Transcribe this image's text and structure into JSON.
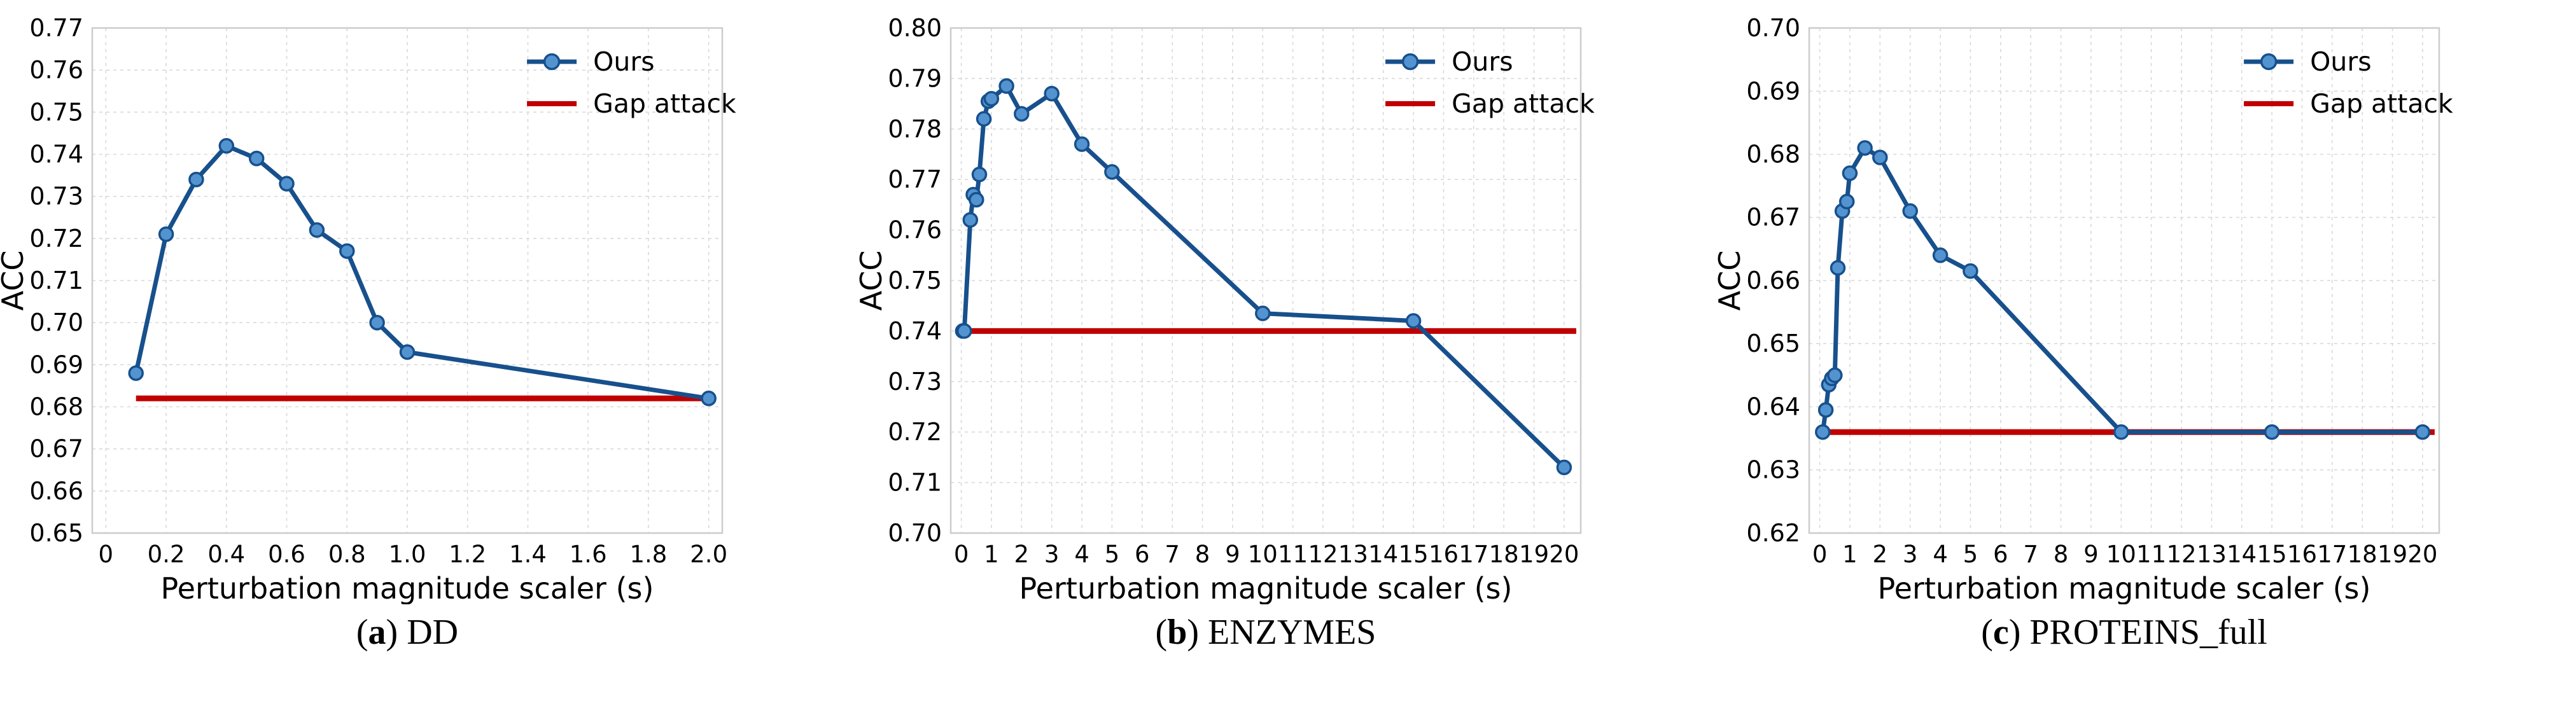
{
  "figure": {
    "background": "#ffffff",
    "xlabel": "Perturbation magnitude scaler (s)",
    "ylabel": "ACC",
    "legend": [
      "Ours",
      "Gap attack"
    ],
    "legend_position": "upper right",
    "grid": "dashed"
  },
  "colors": {
    "ours_line": "#17508c",
    "ours_marker_face": "#5394d0",
    "ours_marker_edge": "#17508c",
    "gap_line": "#c00000",
    "grid": "#d9d9d9",
    "frame": "#cccccc",
    "text": "#000000"
  },
  "chart_data": [
    {
      "type": "line",
      "caption_letter": "a",
      "caption_title": "DD",
      "xlabel": "Perturbation magnitude scaler (s)",
      "ylabel": "ACC",
      "xlim": [
        -0.045,
        2.045
      ],
      "ylim": [
        0.65,
        0.77
      ],
      "xticks": [
        0,
        0.2,
        0.4,
        0.6,
        0.8,
        1.0,
        1.2,
        1.4,
        1.6,
        1.8,
        2.0
      ],
      "xtick_labels": [
        "0",
        "0.2",
        "0.4",
        "0.6",
        "0.8",
        "1.0",
        "1.2",
        "1.4",
        "1.6",
        "1.8",
        "2.0"
      ],
      "yticks": [
        0.65,
        0.66,
        0.67,
        0.68,
        0.69,
        0.7,
        0.71,
        0.72,
        0.73,
        0.74,
        0.75,
        0.76,
        0.77
      ],
      "ytick_labels": [
        "0.65",
        "0.66",
        "0.67",
        "0.68",
        "0.69",
        "0.70",
        "0.71",
        "0.72",
        "0.73",
        "0.74",
        "0.75",
        "0.76",
        "0.77"
      ],
      "series": [
        {
          "name": "Ours",
          "style": "line+marker",
          "x": [
            0.1,
            0.2,
            0.3,
            0.4,
            0.5,
            0.6,
            0.7,
            0.8,
            0.9,
            1.0,
            2.0
          ],
          "y": [
            0.688,
            0.721,
            0.734,
            0.742,
            0.739,
            0.733,
            0.722,
            0.717,
            0.7,
            0.693,
            0.682
          ]
        },
        {
          "name": "Gap attack",
          "style": "hline",
          "y": 0.682,
          "x_start": 0.1,
          "x_end": 2.0
        }
      ]
    },
    {
      "type": "line",
      "caption_letter": "b",
      "caption_title": "ENZYMES",
      "xlabel": "Perturbation magnitude scaler (s)",
      "ylabel": "ACC",
      "xlim": [
        -0.35,
        20.55
      ],
      "ylim": [
        0.7,
        0.8
      ],
      "xticks": [
        0,
        1,
        2,
        3,
        4,
        5,
        6,
        7,
        8,
        9,
        10,
        11,
        12,
        13,
        14,
        15,
        16,
        17,
        18,
        19,
        20
      ],
      "xtick_labels": [
        "0",
        "1",
        "2",
        "3",
        "4",
        "5",
        "6",
        "7",
        "8",
        "9",
        "10",
        "11",
        "12",
        "13",
        "14",
        "15",
        "16",
        "17",
        "18",
        "19",
        "20"
      ],
      "yticks": [
        0.7,
        0.71,
        0.72,
        0.73,
        0.74,
        0.75,
        0.76,
        0.77,
        0.78,
        0.79,
        0.8
      ],
      "ytick_labels": [
        "0.70",
        "0.71",
        "0.72",
        "0.73",
        "0.74",
        "0.75",
        "0.76",
        "0.77",
        "0.78",
        "0.79",
        "0.80"
      ],
      "series": [
        {
          "name": "Ours",
          "style": "line+marker",
          "x": [
            0.05,
            0.1,
            0.3,
            0.4,
            0.5,
            0.6,
            0.75,
            0.9,
            1.0,
            1.5,
            2,
            3,
            4,
            5,
            10,
            15,
            20
          ],
          "y": [
            0.74,
            0.74,
            0.762,
            0.767,
            0.766,
            0.771,
            0.782,
            0.7855,
            0.786,
            0.7885,
            0.783,
            0.787,
            0.777,
            0.7715,
            0.7435,
            0.742,
            0.713
          ]
        },
        {
          "name": "Gap attack",
          "style": "hline",
          "y": 0.74,
          "x_start": 0.05,
          "x_end": 20.4
        }
      ]
    },
    {
      "type": "line",
      "caption_letter": "c",
      "caption_title": "PROTEINS_full",
      "xlabel": "Perturbation magnitude scaler (s)",
      "ylabel": "ACC",
      "xlim": [
        -0.35,
        20.55
      ],
      "ylim": [
        0.62,
        0.7
      ],
      "xticks": [
        0,
        1,
        2,
        3,
        4,
        5,
        6,
        7,
        8,
        9,
        10,
        11,
        12,
        13,
        14,
        15,
        16,
        17,
        18,
        19,
        20
      ],
      "xtick_labels": [
        "0",
        "1",
        "2",
        "3",
        "4",
        "5",
        "6",
        "7",
        "8",
        "9",
        "10",
        "11",
        "12",
        "13",
        "14",
        "15",
        "16",
        "17",
        "18",
        "19",
        "20"
      ],
      "yticks": [
        0.62,
        0.63,
        0.64,
        0.65,
        0.66,
        0.67,
        0.68,
        0.69,
        0.7
      ],
      "ytick_labels": [
        "0.62",
        "0.63",
        "0.64",
        "0.65",
        "0.66",
        "0.67",
        "0.68",
        "0.69",
        "0.70"
      ],
      "series": [
        {
          "name": "Ours",
          "style": "line+marker",
          "x": [
            0.1,
            0.2,
            0.3,
            0.4,
            0.5,
            0.6,
            0.75,
            0.9,
            1.0,
            1.5,
            2,
            3,
            4,
            5,
            10,
            15,
            20
          ],
          "y": [
            0.636,
            0.6395,
            0.6435,
            0.6445,
            0.645,
            0.662,
            0.671,
            0.6725,
            0.677,
            0.681,
            0.6795,
            0.671,
            0.664,
            0.6615,
            0.636,
            0.636,
            0.636
          ]
        },
        {
          "name": "Gap attack",
          "style": "hline",
          "y": 0.636,
          "x_start": 0.1,
          "x_end": 20.4
        }
      ]
    }
  ]
}
